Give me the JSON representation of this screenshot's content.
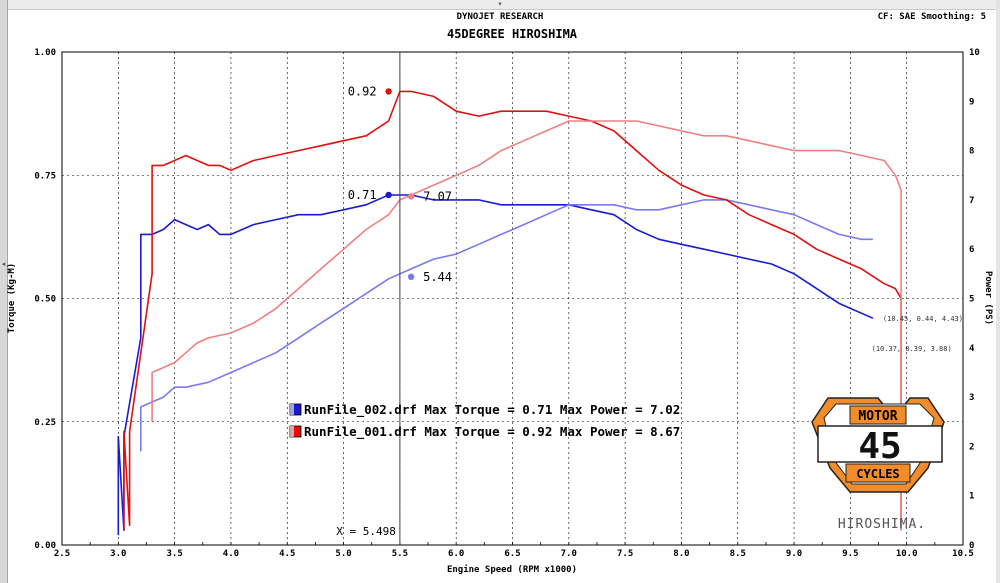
{
  "header": {
    "brand": "DYNOJET RESEARCH",
    "correction": "CF: SAE  Smoothing: 5"
  },
  "logo": {
    "top_text": "MOTOR",
    "number": "45",
    "bottom_text": "CYCLES",
    "wordmark": "HIROSHIMA."
  },
  "colors": {
    "runfile_002_torque": "#1a1ad0",
    "runfile_002_power": "#7a7af0",
    "runfile_001_torque": "#e01010",
    "runfile_001_power": "#f08080",
    "grid": "#000000",
    "cursor": "#333333",
    "logo_orange": "#f28c28"
  },
  "chart_data": {
    "type": "line",
    "title": "45DEGREE HIROSHIMA",
    "xlabel": "Engine Speed (RPM x1000)",
    "ylabel_left": "Torque (Kg-M)",
    "ylabel_right": "Power (PS)",
    "xlim": [
      2.5,
      10.5
    ],
    "ylim_left": [
      0.0,
      1.0
    ],
    "ylim_right": [
      0,
      10
    ],
    "x_ticks": [
      "2.5",
      "3.0",
      "3.5",
      "4.0",
      "4.5",
      "5.0",
      "5.5",
      "6.0",
      "6.5",
      "7.0",
      "7.5",
      "8.0",
      "8.5",
      "9.0",
      "9.5",
      "10.0",
      "10.5"
    ],
    "y_left_ticks": [
      "0.00",
      "0.25",
      "0.50",
      "0.75",
      "1.00"
    ],
    "y_right_ticks": [
      "0",
      "1",
      "2",
      "3",
      "4",
      "5",
      "6",
      "7",
      "8",
      "9",
      "10"
    ],
    "grid": true,
    "cursor": {
      "x": 5.5,
      "label": "X = 5.498"
    },
    "series": [
      {
        "name": "RunFile_002.drf",
        "kind": "torque",
        "axis": "left",
        "color": "#1a1ad0",
        "x": [
          3.0,
          3.0,
          3.05,
          3.05,
          3.2,
          3.2,
          3.3,
          3.4,
          3.5,
          3.6,
          3.7,
          3.8,
          3.9,
          4.0,
          4.1,
          4.2,
          4.4,
          4.6,
          4.8,
          5.0,
          5.2,
          5.4,
          5.5,
          5.6,
          5.8,
          6.0,
          6.2,
          6.4,
          6.6,
          6.8,
          7.0,
          7.2,
          7.4,
          7.6,
          7.8,
          8.0,
          8.2,
          8.4,
          8.6,
          8.8,
          9.0,
          9.2,
          9.4,
          9.6,
          9.7
        ],
        "y": [
          0.02,
          0.22,
          0.03,
          0.22,
          0.42,
          0.63,
          0.63,
          0.64,
          0.66,
          0.65,
          0.64,
          0.65,
          0.63,
          0.63,
          0.64,
          0.65,
          0.66,
          0.67,
          0.67,
          0.68,
          0.69,
          0.71,
          0.71,
          0.71,
          0.7,
          0.7,
          0.7,
          0.69,
          0.69,
          0.69,
          0.69,
          0.68,
          0.67,
          0.64,
          0.62,
          0.61,
          0.6,
          0.59,
          0.58,
          0.57,
          0.55,
          0.52,
          0.49,
          0.47,
          0.46
        ]
      },
      {
        "name": "RunFile_002.drf",
        "kind": "power",
        "axis": "right",
        "color": "#7a7af0",
        "x": [
          3.2,
          3.2,
          3.3,
          3.4,
          3.5,
          3.6,
          3.8,
          4.0,
          4.2,
          4.4,
          4.6,
          4.8,
          5.0,
          5.2,
          5.4,
          5.6,
          5.8,
          6.0,
          6.2,
          6.4,
          6.6,
          6.8,
          7.0,
          7.2,
          7.4,
          7.6,
          7.8,
          8.0,
          8.2,
          8.4,
          8.6,
          8.8,
          9.0,
          9.2,
          9.4,
          9.6,
          9.7
        ],
        "y": [
          1.9,
          2.8,
          2.9,
          3.0,
          3.2,
          3.2,
          3.3,
          3.5,
          3.7,
          3.9,
          4.2,
          4.5,
          4.8,
          5.1,
          5.4,
          5.6,
          5.8,
          5.9,
          6.1,
          6.3,
          6.5,
          6.7,
          6.9,
          6.9,
          6.9,
          6.8,
          6.8,
          6.9,
          7.0,
          7.0,
          6.9,
          6.8,
          6.7,
          6.5,
          6.3,
          6.2,
          6.2
        ]
      },
      {
        "name": "RunFile_001.drf",
        "kind": "torque",
        "axis": "left",
        "color": "#e01010",
        "x": [
          3.05,
          3.05,
          3.1,
          3.1,
          3.3,
          3.3,
          3.4,
          3.5,
          3.6,
          3.7,
          3.8,
          3.9,
          4.0,
          4.2,
          4.4,
          4.6,
          4.8,
          5.0,
          5.2,
          5.4,
          5.5,
          5.6,
          5.8,
          6.0,
          6.2,
          6.4,
          6.6,
          6.8,
          7.0,
          7.2,
          7.4,
          7.6,
          7.8,
          8.0,
          8.2,
          8.4,
          8.6,
          8.8,
          9.0,
          9.2,
          9.4,
          9.6,
          9.8,
          9.9,
          9.95,
          9.95
        ],
        "y": [
          0.03,
          0.23,
          0.04,
          0.23,
          0.55,
          0.77,
          0.77,
          0.78,
          0.79,
          0.78,
          0.77,
          0.77,
          0.76,
          0.78,
          0.79,
          0.8,
          0.81,
          0.82,
          0.83,
          0.86,
          0.92,
          0.92,
          0.91,
          0.88,
          0.87,
          0.88,
          0.88,
          0.88,
          0.87,
          0.86,
          0.84,
          0.8,
          0.76,
          0.73,
          0.71,
          0.7,
          0.67,
          0.65,
          0.63,
          0.6,
          0.58,
          0.56,
          0.53,
          0.52,
          0.5,
          0.03
        ]
      },
      {
        "name": "RunFile_001.drf",
        "kind": "power",
        "axis": "right",
        "color": "#f08080",
        "x": [
          3.3,
          3.3,
          3.4,
          3.5,
          3.6,
          3.7,
          3.8,
          4.0,
          4.2,
          4.4,
          4.6,
          4.8,
          5.0,
          5.2,
          5.4,
          5.5,
          5.6,
          5.8,
          6.0,
          6.2,
          6.4,
          6.6,
          6.8,
          7.0,
          7.2,
          7.4,
          7.6,
          7.8,
          8.0,
          8.2,
          8.4,
          8.6,
          8.8,
          9.0,
          9.2,
          9.4,
          9.6,
          9.8,
          9.9,
          9.95,
          9.95
        ],
        "y": [
          2.5,
          3.5,
          3.6,
          3.7,
          3.9,
          4.1,
          4.2,
          4.3,
          4.5,
          4.8,
          5.2,
          5.6,
          6.0,
          6.4,
          6.7,
          7.0,
          7.1,
          7.3,
          7.5,
          7.7,
          8.0,
          8.2,
          8.4,
          8.6,
          8.6,
          8.6,
          8.6,
          8.5,
          8.4,
          8.3,
          8.3,
          8.2,
          8.1,
          8.0,
          8.0,
          8.0,
          7.9,
          7.8,
          7.5,
          7.2,
          0.3
        ]
      }
    ],
    "annotations": [
      {
        "text": "0.92",
        "x": 5.4,
        "y": 0.92,
        "axis": "left",
        "color": "#e01010",
        "side": "left"
      },
      {
        "text": "0.71",
        "x": 5.4,
        "y": 0.71,
        "axis": "left",
        "color": "#1a1ad0",
        "side": "left"
      },
      {
        "text": "7.07",
        "x": 5.6,
        "y": 7.07,
        "axis": "right",
        "color": "#f08080",
        "side": "right"
      },
      {
        "text": "5.44",
        "x": 5.6,
        "y": 5.44,
        "axis": "right",
        "color": "#7a7af0",
        "side": "right"
      }
    ],
    "readouts": [
      {
        "text": "(10.45, 0.44, 4.43)",
        "x": 9.7,
        "y": 0.46
      },
      {
        "text": "(10.37, 0.39, 3.88)",
        "x": 9.6,
        "y": 0.4
      }
    ],
    "legend": [
      {
        "text": "RunFile_002.drf Max Torque = 0.71  Max Power = 7.02",
        "color": "#1a1ad0"
      },
      {
        "text": "RunFile_001.drf Max Torque = 0.92  Max Power = 8.67",
        "color": "#e01010"
      }
    ]
  }
}
